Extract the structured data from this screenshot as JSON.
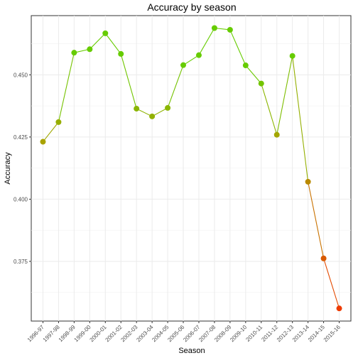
{
  "chart_data": {
    "type": "line",
    "title": "Accuracy by season",
    "xlabel": "Season",
    "ylabel": "Accuracy",
    "categories": [
      "1996-97",
      "1997-98",
      "1998-99",
      "1999-00",
      "2000-01",
      "2001-02",
      "2002-03",
      "2003-04",
      "2004-05",
      "2005-06",
      "2006-07",
      "2007-08",
      "2008-09",
      "2009-10",
      "2010-11",
      "2011-12",
      "2012-13",
      "2013-14",
      "2014-15",
      "2015-16"
    ],
    "values": [
      0.4231,
      0.431,
      0.4589,
      0.4603,
      0.4667,
      0.4584,
      0.4364,
      0.4333,
      0.4367,
      0.4539,
      0.4579,
      0.4688,
      0.4681,
      0.4538,
      0.4465,
      0.4259,
      0.4576,
      0.407,
      0.3762,
      0.3561
    ],
    "ylim": [
      0.351,
      0.4738
    ],
    "yticks": [
      0.375,
      0.4,
      0.425,
      0.45
    ],
    "ytick_labels": [
      "0.375",
      "0.400",
      "0.425",
      "0.450"
    ],
    "grid": true,
    "color_scale": {
      "low": "#ee3b00",
      "mid": "#a8a300",
      "high": "#66cc00"
    }
  }
}
